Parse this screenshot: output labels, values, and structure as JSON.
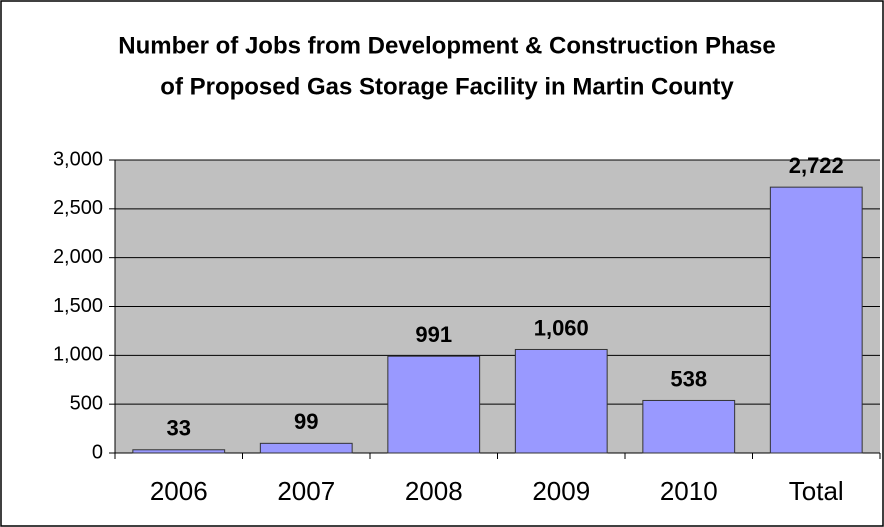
{
  "chart_data": {
    "type": "bar",
    "title": [
      "Number of Jobs from Development & Construction Phase",
      "of Proposed Gas Storage Facility in Martin County"
    ],
    "categories": [
      "2006",
      "2007",
      "2008",
      "2009",
      "2010",
      "Total"
    ],
    "values": [
      33,
      99,
      991,
      1060,
      538,
      2722
    ],
    "value_labels": [
      "33",
      "99",
      "991",
      "1,060",
      "538",
      "2,722"
    ],
    "color": "#9999ff",
    "ylim": [
      0,
      3000
    ],
    "yticks": [
      0,
      500,
      {
        "value": 1000,
        "label": "1,000"
      },
      {
        "value": 1500,
        "label": "1,500"
      },
      {
        "value": 2000,
        "label": "2,000"
      },
      {
        "value": 2500,
        "label": "2,500"
      },
      {
        "value": 3000,
        "label": "3,000"
      }
    ],
    "grid": true
  }
}
